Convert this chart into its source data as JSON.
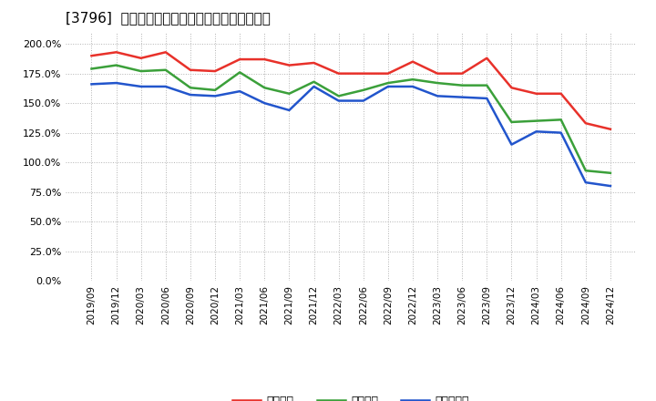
{
  "title": "[3796]  流動比率、当座比率、現頲金比率の推移",
  "x_labels": [
    "2019/09",
    "2019/12",
    "2020/03",
    "2020/06",
    "2020/09",
    "2020/12",
    "2021/03",
    "2021/06",
    "2021/09",
    "2021/12",
    "2022/03",
    "2022/06",
    "2022/09",
    "2022/12",
    "2023/03",
    "2023/06",
    "2023/09",
    "2023/12",
    "2024/03",
    "2024/06",
    "2024/09",
    "2024/12"
  ],
  "ryudo": [
    1.9,
    1.93,
    1.88,
    1.93,
    1.78,
    1.77,
    1.87,
    1.87,
    1.82,
    1.84,
    1.75,
    1.75,
    1.75,
    1.85,
    1.75,
    1.75,
    1.88,
    1.63,
    1.58,
    1.58,
    1.33,
    1.28
  ],
  "toza": [
    1.79,
    1.82,
    1.77,
    1.78,
    1.63,
    1.61,
    1.76,
    1.63,
    1.58,
    1.68,
    1.56,
    1.61,
    1.67,
    1.7,
    1.67,
    1.65,
    1.65,
    1.34,
    1.35,
    1.36,
    0.93,
    0.91
  ],
  "genyo": [
    1.66,
    1.67,
    1.64,
    1.64,
    1.57,
    1.56,
    1.6,
    1.5,
    1.44,
    1.64,
    1.52,
    1.52,
    1.64,
    1.64,
    1.56,
    1.55,
    1.54,
    1.15,
    1.26,
    1.25,
    0.83,
    0.8
  ],
  "ryudo_color": "#e8312a",
  "toza_color": "#3ba03a",
  "genyo_color": "#2255cc",
  "background_color": "#ffffff",
  "plot_bg_color": "#ffffff",
  "grid_color": "#aaaaaa",
  "ylim": [
    0.0,
    2.1
  ],
  "yticks": [
    0.0,
    0.25,
    0.5,
    0.75,
    1.0,
    1.25,
    1.5,
    1.75,
    2.0
  ],
  "legend_labels": [
    "流動比率",
    "当座比率",
    "現頲金比率"
  ]
}
